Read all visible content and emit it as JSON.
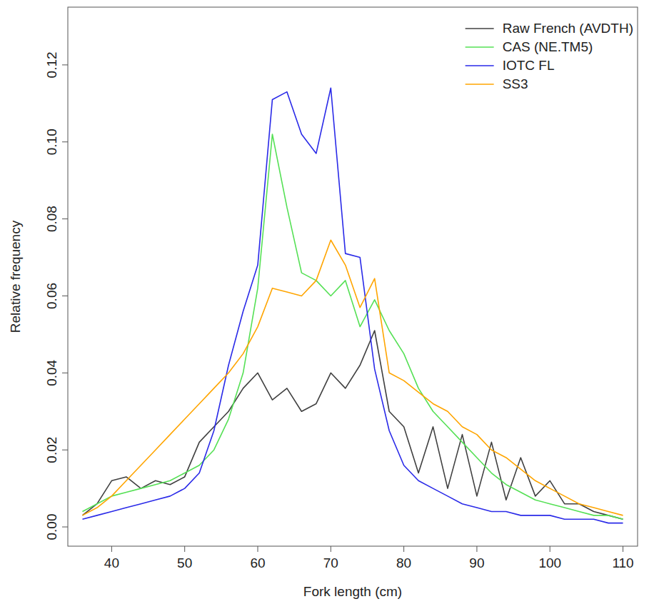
{
  "chart_data": {
    "type": "line",
    "x_label": "Fork length (cm)",
    "y_label": "Relative frequency",
    "x": [
      36,
      38,
      40,
      42,
      44,
      46,
      48,
      50,
      52,
      54,
      56,
      58,
      60,
      62,
      64,
      66,
      68,
      70,
      72,
      74,
      76,
      78,
      80,
      82,
      84,
      86,
      88,
      90,
      92,
      94,
      96,
      98,
      100,
      102,
      104,
      106,
      108,
      110
    ],
    "series": [
      {
        "name": "Raw French (AVDTH)",
        "color": "#404040",
        "values": [
          0.003,
          0.006,
          0.012,
          0.013,
          0.01,
          0.012,
          0.011,
          0.013,
          0.022,
          0.026,
          0.03,
          0.036,
          0.04,
          0.033,
          0.036,
          0.03,
          0.032,
          0.04,
          0.036,
          0.042,
          0.051,
          0.03,
          0.026,
          0.014,
          0.026,
          0.01,
          0.024,
          0.008,
          0.022,
          0.007,
          0.018,
          0.008,
          0.012,
          0.006,
          0.006,
          0.004,
          0.003,
          0.002
        ]
      },
      {
        "name": "CAS (NE.TM5)",
        "color": "#55e055",
        "values": [
          0.004,
          0.006,
          0.008,
          0.009,
          0.01,
          0.011,
          0.012,
          0.014,
          0.016,
          0.02,
          0.028,
          0.04,
          0.062,
          0.102,
          0.083,
          0.066,
          0.064,
          0.06,
          0.064,
          0.052,
          0.059,
          0.051,
          0.045,
          0.036,
          0.03,
          0.026,
          0.022,
          0.018,
          0.014,
          0.011,
          0.009,
          0.007,
          0.006,
          0.005,
          0.004,
          0.003,
          0.003,
          0.002
        ]
      },
      {
        "name": "IOTC FL",
        "color": "#2a2ae8",
        "values": [
          0.002,
          0.003,
          0.004,
          0.005,
          0.006,
          0.007,
          0.008,
          0.01,
          0.014,
          0.025,
          0.042,
          0.056,
          0.068,
          0.111,
          0.113,
          0.102,
          0.097,
          0.114,
          0.071,
          0.07,
          0.041,
          0.025,
          0.016,
          0.012,
          0.01,
          0.008,
          0.006,
          0.005,
          0.004,
          0.004,
          0.003,
          0.003,
          0.003,
          0.002,
          0.002,
          0.002,
          0.001,
          0.001
        ]
      },
      {
        "name": "SS3",
        "color": "#ffa500",
        "values": [
          0.003,
          0.005,
          0.008,
          0.012,
          0.016,
          0.02,
          0.024,
          0.028,
          0.032,
          0.036,
          0.04,
          0.045,
          0.052,
          0.062,
          0.061,
          0.06,
          0.064,
          0.0745,
          0.068,
          0.057,
          0.0645,
          0.04,
          0.038,
          0.035,
          0.032,
          0.03,
          0.026,
          0.024,
          0.02,
          0.018,
          0.015,
          0.012,
          0.01,
          0.008,
          0.006,
          0.005,
          0.004,
          0.003
        ]
      }
    ],
    "xlim": [
      34,
      112
    ],
    "xticks": [
      40,
      50,
      60,
      70,
      80,
      90,
      100,
      110
    ],
    "ylim": [
      -0.005,
      0.135
    ],
    "yticks": [
      {
        "value": 0,
        "label": "0.00"
      },
      0.02,
      0.04,
      0.06,
      0.08,
      {
        "value": 0.1,
        "label": "0.10"
      },
      0.12
    ],
    "legend": "top-right",
    "grid": false
  }
}
